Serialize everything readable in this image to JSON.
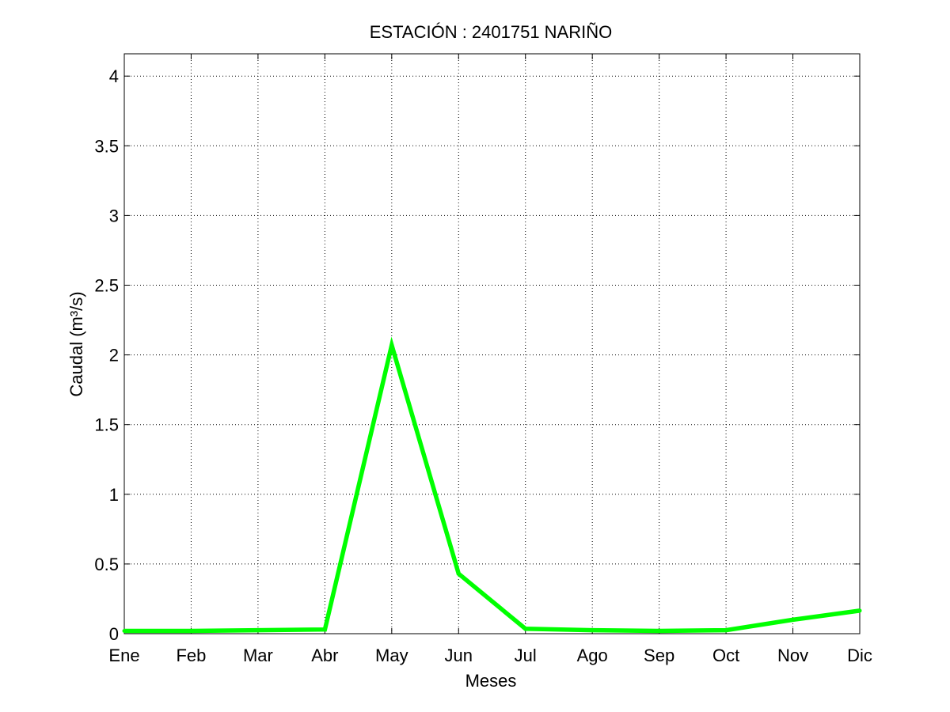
{
  "chart_data": {
    "type": "line",
    "title": "ESTACIÓN :  2401751  NARIÑO",
    "xlabel": "Meses",
    "ylabel": "Caudal (m³/s)",
    "categories": [
      "Ene",
      "Feb",
      "Mar",
      "Abr",
      "May",
      "Jun",
      "Jul",
      "Ago",
      "Sep",
      "Oct",
      "Nov",
      "Dic"
    ],
    "series": [
      {
        "values": [
          0.02,
          0.02,
          0.025,
          0.03,
          2.07,
          0.43,
          0.035,
          0.025,
          0.02,
          0.025,
          0.1,
          0.165
        ],
        "color": "#00ff00"
      }
    ],
    "ylim": [
      0,
      4.16
    ],
    "yticks": [
      0,
      0.5,
      1,
      1.5,
      2,
      2.5,
      3,
      3.5,
      4
    ],
    "yticklabels": [
      "0",
      "0.5",
      "1",
      "1.5",
      "2",
      "2.5",
      "3",
      "3.5",
      "4"
    ],
    "grid": true,
    "legend": "none"
  }
}
